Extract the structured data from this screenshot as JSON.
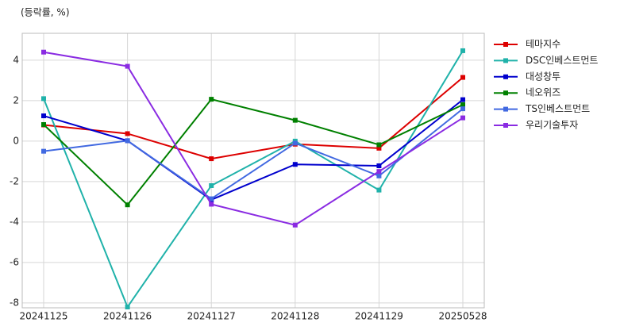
{
  "chart_data": {
    "type": "line",
    "title": "(등락률, %)",
    "categories": [
      "20241125",
      "20241126",
      "20241127",
      "20241128",
      "20241129",
      "20250528"
    ],
    "series": [
      {
        "name": "테마지수",
        "color": "#dd0000",
        "values": [
          0.8,
          0.37,
          -0.87,
          -0.15,
          -0.35,
          3.15
        ]
      },
      {
        "name": "DSC인베스트먼트",
        "color": "#20b2aa",
        "values": [
          2.1,
          -8.2,
          -2.2,
          0.0,
          -2.42,
          4.47
        ]
      },
      {
        "name": "대성창투",
        "color": "#0000cd",
        "values": [
          1.25,
          0.02,
          -2.9,
          -1.15,
          -1.22,
          2.05
        ]
      },
      {
        "name": "네오위즈",
        "color": "#008000",
        "values": [
          0.82,
          -3.15,
          2.07,
          1.03,
          -0.18,
          1.8
        ]
      },
      {
        "name": "TS인베스트먼트",
        "color": "#4169e1",
        "values": [
          -0.5,
          0.02,
          -2.85,
          -0.1,
          -1.72,
          1.6
        ]
      },
      {
        "name": "우리기술투자",
        "color": "#8a2be2",
        "values": [
          4.4,
          3.7,
          -3.12,
          -4.15,
          -1.5,
          1.15
        ]
      }
    ],
    "ylim": [
      -8.24,
      5.33
    ],
    "yticks": [
      -8,
      -6,
      -4,
      -2,
      0,
      2,
      4
    ],
    "grid": true,
    "legend": "right"
  }
}
